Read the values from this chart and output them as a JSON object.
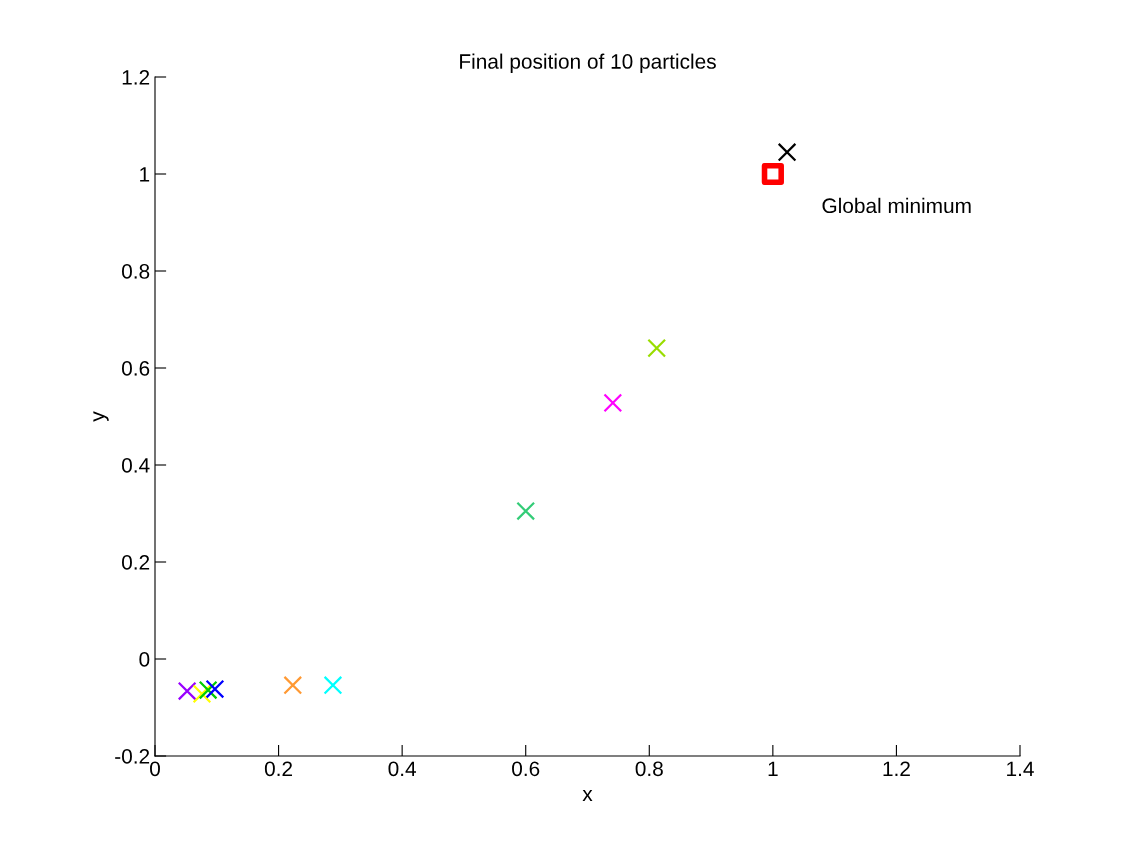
{
  "chart_data": {
    "type": "scatter",
    "title": "Final position of 10 particles",
    "xlabel": "x",
    "ylabel": "y",
    "xlim": [
      0,
      1.4
    ],
    "xticks": [
      0,
      0.2,
      0.4,
      0.6,
      0.8,
      1,
      1.2,
      1.4
    ],
    "ylim": [
      -0.2,
      1.2
    ],
    "yticks": [
      -0.2,
      0,
      0.2,
      0.4,
      0.6,
      0.8,
      1,
      1.2
    ],
    "grid": false,
    "legend": false,
    "series": [
      {
        "marker": "cross",
        "x": [
          0.052,
          0.076,
          0.086,
          0.097,
          0.223,
          0.288,
          0.6,
          0.741,
          0.812,
          1.023
        ],
        "values": [
          -0.066,
          -0.072,
          -0.064,
          -0.062,
          -0.054,
          -0.054,
          0.305,
          0.528,
          0.641,
          1.045
        ],
        "colors": [
          "#9900ff",
          "#ffff00",
          "#00cc00",
          "#0000ff",
          "#ff9933",
          "#00ffff",
          "#33cc77",
          "#ff00ff",
          "#99dd00",
          "#000000"
        ]
      },
      {
        "marker": "square",
        "x": [
          1
        ],
        "values": [
          1
        ],
        "color": "#ff0000"
      }
    ],
    "annotations": [
      {
        "text": "Global minimum",
        "x": 1,
        "y": 1
      }
    ]
  }
}
